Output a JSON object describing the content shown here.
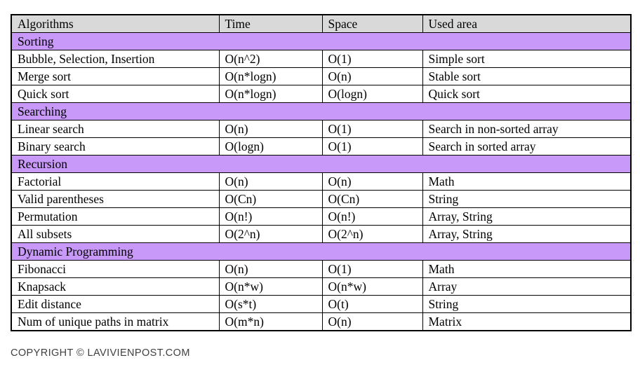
{
  "chart_data": {
    "type": "table",
    "columns": [
      "Algorithms",
      "Time",
      "Space",
      "Used area"
    ],
    "sections": [
      {
        "title": "Sorting",
        "rows": [
          [
            "Bubble, Selection, Insertion",
            "O(n^2)",
            "O(1)",
            "Simple sort"
          ],
          [
            "Merge sort",
            "O(n*logn)",
            "O(n)",
            "Stable sort"
          ],
          [
            "Quick sort",
            "O(n*logn)",
            "O(logn)",
            "Quick sort"
          ]
        ]
      },
      {
        "title": "Searching",
        "rows": [
          [
            "Linear search",
            "O(n)",
            "O(1)",
            "Search in non-sorted array"
          ],
          [
            "Binary search",
            "O(logn)",
            "O(1)",
            "Search in sorted array"
          ]
        ]
      },
      {
        "title": "Recursion",
        "rows": [
          [
            "Factorial",
            "O(n)",
            "O(n)",
            "Math"
          ],
          [
            "Valid parentheses",
            "O(Cn)",
            "O(Cn)",
            "String"
          ],
          [
            "Permutation",
            "O(n!)",
            "O(n!)",
            "Array, String"
          ],
          [
            "All subsets",
            "O(2^n)",
            "O(2^n)",
            "Array, String"
          ]
        ]
      },
      {
        "title": "Dynamic Programming",
        "rows": [
          [
            "Fibonacci",
            "O(n)",
            "O(1)",
            "Math"
          ],
          [
            "Knapsack",
            "O(n*w)",
            "O(n*w)",
            "Array"
          ],
          [
            "Edit distance",
            "O(s*t)",
            "O(t)",
            "String"
          ],
          [
            "Num of unique paths in matrix",
            "O(m*n)",
            "O(n)",
            "Matrix"
          ]
        ]
      }
    ],
    "layout": {
      "grid": true,
      "header_row": true,
      "section_rows_span_all_columns": true
    }
  },
  "footer": {
    "copyright": "COPYRIGHT © LAVIVIENPOST.COM"
  },
  "colors": {
    "header_bg": "#d9d9d9",
    "section_bg": "#c899f8",
    "border": "#000000",
    "text": "#000000",
    "footer_text": "#404040"
  }
}
